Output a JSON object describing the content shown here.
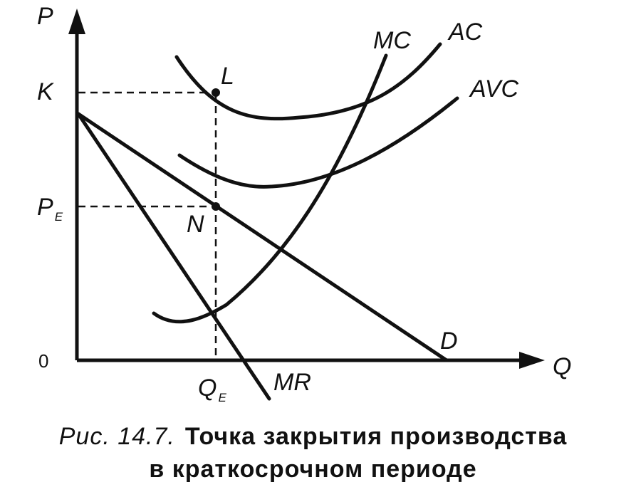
{
  "axes": {
    "y_label": "P",
    "x_label": "Q",
    "origin_label": "0"
  },
  "y_ticks": {
    "k": "K",
    "pe_main": "P",
    "pe_sub": "E"
  },
  "x_ticks": {
    "qe_main": "Q",
    "qe_sub": "E"
  },
  "curves": {
    "mc": "MC",
    "ac": "AC",
    "avc": "AVC",
    "demand": "D",
    "mr": "MR"
  },
  "points": {
    "l": "L",
    "n": "N"
  },
  "caption": {
    "prefix": "Рис.  14.7.",
    "line1": "Точка  закрытия  производства",
    "line2": "в  краткосрочном  периоде"
  },
  "colors": {
    "ink": "#111111",
    "background": "#ffffff"
  }
}
